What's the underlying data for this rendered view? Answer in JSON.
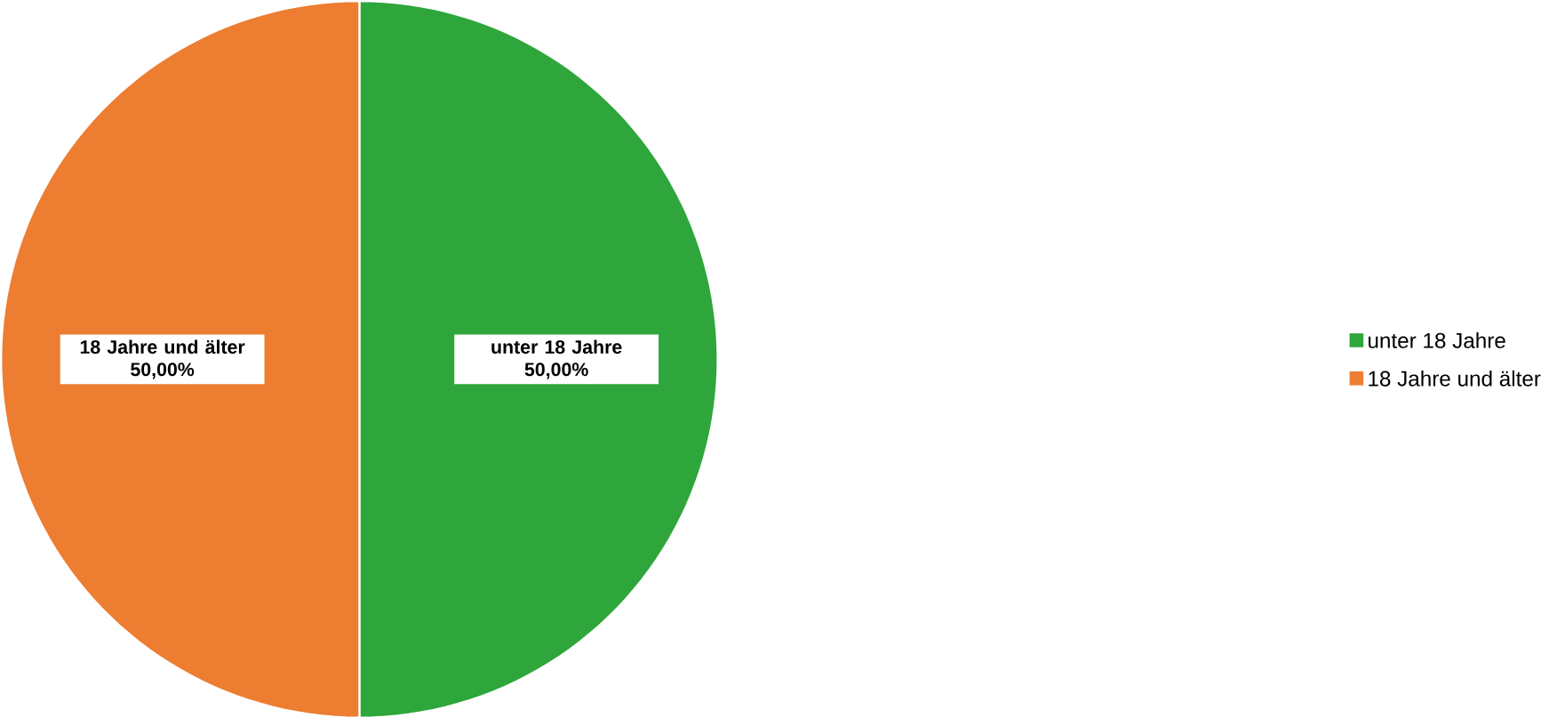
{
  "chart_data": {
    "type": "pie",
    "categories": [
      "unter 18 Jahre",
      "18 Jahre und älter"
    ],
    "values": [
      50,
      50
    ],
    "colors": [
      "#2ea63b",
      "#ed7d31"
    ],
    "value_labels": [
      "50,00%",
      "50,00%"
    ],
    "legend": "right"
  }
}
